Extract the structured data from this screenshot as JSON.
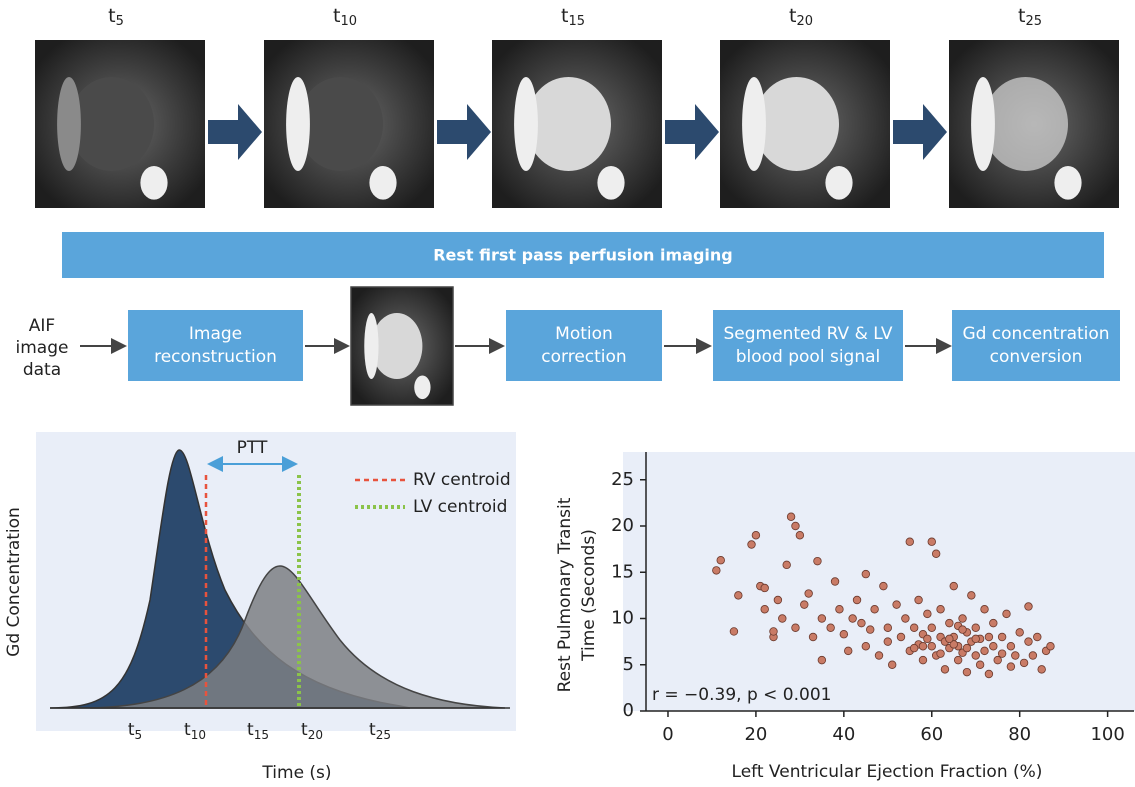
{
  "frames": [
    [
      "t",
      "5"
    ],
    [
      "t",
      "10"
    ],
    [
      "t",
      "15"
    ],
    [
      "t",
      "20"
    ],
    [
      "t",
      "25"
    ]
  ],
  "banner": "Rest first pass perfusion imaging",
  "pipeline": {
    "input": [
      "AIF",
      "image",
      "data"
    ],
    "steps": [
      [
        "Image",
        "reconstruction"
      ],
      [
        "Motion",
        "correction"
      ],
      [
        "Segmented RV & LV",
        "blood pool signal"
      ],
      [
        "Gd concentration",
        "conversion"
      ]
    ]
  },
  "diagram": {
    "ylabel": "Gd Concentration",
    "xlabel": "Time (s)",
    "interval": "PTT",
    "legend": [
      "RV centroid",
      "LV centroid"
    ],
    "xlabels": [
      [
        "t",
        "5"
      ],
      [
        "t",
        "10"
      ],
      [
        "t",
        "15"
      ],
      [
        "t",
        "20"
      ],
      [
        "t",
        "25"
      ]
    ]
  },
  "chart_data": {
    "type": "scatter",
    "xlabel": "Left Ventricular Ejection Fraction (%)",
    "ylabel": [
      "Rest Pulmonary Transit",
      "Time (Seconds)"
    ],
    "annotation": "r = −0.39, p < 0.001",
    "color": "#c97b66",
    "xlim": [
      -5,
      106
    ],
    "ylim": [
      0,
      28
    ],
    "xticks": [
      0,
      20,
      40,
      60,
      80,
      100
    ],
    "yticks": [
      0,
      5,
      10,
      15,
      20,
      25
    ],
    "x": [
      11,
      12,
      15,
      16,
      19,
      20,
      21,
      22,
      22,
      24,
      24,
      25,
      26,
      27,
      28,
      29,
      30,
      29,
      31,
      32,
      33,
      34,
      35,
      35,
      37,
      38,
      39,
      40,
      41,
      42,
      43,
      44,
      45,
      45,
      46,
      47,
      48,
      49,
      50,
      50,
      51,
      52,
      53,
      54,
      55,
      55,
      56,
      57,
      57,
      58,
      58,
      59,
      60,
      60,
      60,
      61,
      61,
      62,
      62,
      63,
      63,
      64,
      64,
      65,
      65,
      66,
      66,
      67,
      67,
      68,
      68,
      69,
      69,
      70,
      70,
      71,
      71,
      72,
      72,
      73,
      73,
      74,
      74,
      75,
      76,
      76,
      77,
      78,
      78,
      79,
      80,
      81,
      82,
      82,
      83,
      84,
      85,
      86,
      87,
      59,
      62,
      65,
      68,
      58,
      66,
      70,
      64,
      56,
      67
    ],
    "values": [
      15.2,
      16.3,
      8.6,
      12.5,
      18,
      19,
      13.5,
      11,
      13.3,
      8,
      8.6,
      12,
      10,
      15.8,
      21,
      20,
      19,
      9,
      11.5,
      12.7,
      8,
      16.2,
      5.5,
      10,
      9,
      14,
      11,
      8.3,
      6.5,
      10,
      12,
      9.5,
      7,
      14.8,
      8.8,
      11,
      6,
      13.5,
      9,
      7.5,
      5,
      11.5,
      8,
      10,
      18.3,
      6.5,
      9,
      7.2,
      12,
      8.3,
      5.5,
      10.5,
      7,
      18.3,
      9,
      6,
      17,
      8,
      11,
      7.5,
      4.5,
      9.5,
      6.8,
      13.5,
      8,
      7,
      5.5,
      10,
      6.3,
      8.5,
      4.2,
      7.5,
      12.5,
      6,
      9,
      5,
      7.8,
      11,
      6.5,
      8,
      4,
      7,
      9.5,
      5.5,
      8,
      6.2,
      10.5,
      7,
      4.8,
      6,
      8.5,
      5.2,
      7.5,
      11.3,
      6,
      8,
      4.5,
      6.5,
      7,
      7.8,
      6.2,
      7.2,
      6.8,
      7,
      9.2,
      7.8,
      7.8,
      6.8,
      8.8
    ]
  }
}
